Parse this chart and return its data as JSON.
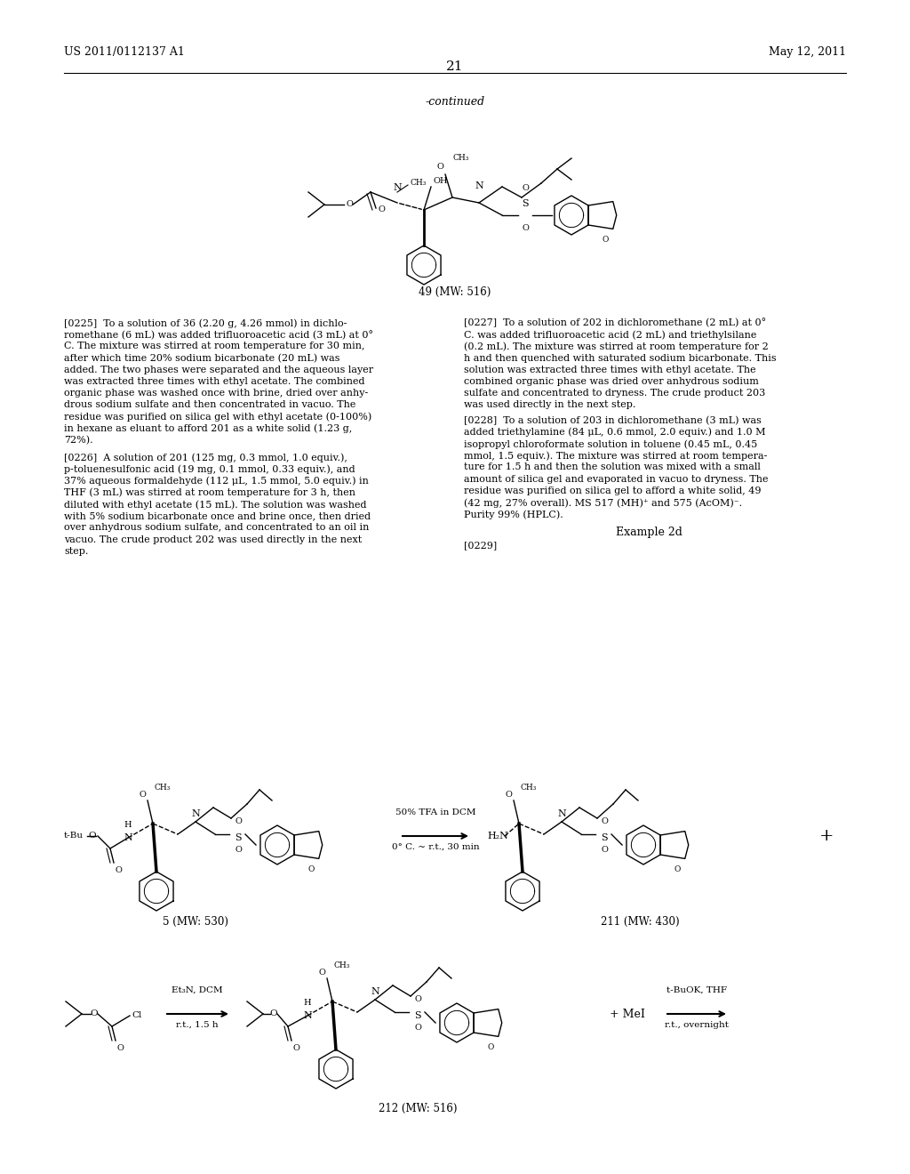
{
  "page_header_left": "US 2011/0112137 A1",
  "page_header_right": "May 12, 2011",
  "page_number": "21",
  "continued_label": "-continued",
  "compound_49_label": "49 (MW: 516)",
  "compound_5_label": "5 (MW: 530)",
  "compound_211_label": "211 (MW: 430)",
  "compound_212_label": "212 (MW: 516)",
  "reaction_arrow_1_top": "50% TFA in DCM",
  "reaction_arrow_1_bot": "0° C. ~ r.t., 30 min",
  "reaction_arrow_2_top": "Et₃N, DCM",
  "reaction_arrow_2_bot": "r.t., 1.5 h",
  "reaction_arrow_3_top": "t-BuOK, THF",
  "reaction_arrow_3_bot": "r.t., overnight",
  "plus1": "+",
  "plus2": "+ MeI",
  "example_2d": "Example 2d",
  "par_0229": "[0229]",
  "background": "#ffffff",
  "p225_lines": [
    "[0225]  To a solution of 36 (2.20 g, 4.26 mmol) in dichlo-",
    "romethane (6 mL) was added trifluoroacetic acid (3 mL) at 0°",
    "C. The mixture was stirred at room temperature for 30 min,",
    "after which time 20% sodium bicarbonate (20 mL) was",
    "added. The two phases were separated and the aqueous layer",
    "was extracted three times with ethyl acetate. The combined",
    "organic phase was washed once with brine, dried over anhy-",
    "drous sodium sulfate and then concentrated in vacuo. The",
    "residue was purified on silica gel with ethyl acetate (0-100%)",
    "in hexane as eluant to afford 201 as a white solid (1.23 g,",
    "72%)."
  ],
  "p226_lines": [
    "[0226]  A solution of 201 (125 mg, 0.3 mmol, 1.0 equiv.),",
    "p-toluenesulfonic acid (19 mg, 0.1 mmol, 0.33 equiv.), and",
    "37% aqueous formaldehyde (112 μL, 1.5 mmol, 5.0 equiv.) in",
    "THF (3 mL) was stirred at room temperature for 3 h, then",
    "diluted with ethyl acetate (15 mL). The solution was washed",
    "with 5% sodium bicarbonate once and brine once, then dried",
    "over anhydrous sodium sulfate, and concentrated to an oil in",
    "vacuo. The crude product 202 was used directly in the next",
    "step."
  ],
  "p227_lines": [
    "[0227]  To a solution of 202 in dichloromethane (2 mL) at 0°",
    "C. was added trifluoroacetic acid (2 mL) and triethylsilane",
    "(0.2 mL). The mixture was stirred at room temperature for 2",
    "h and then quenched with saturated sodium bicarbonate. This",
    "solution was extracted three times with ethyl acetate. The",
    "combined organic phase was dried over anhydrous sodium",
    "sulfate and concentrated to dryness. The crude product 203",
    "was used directly in the next step."
  ],
  "p228_lines": [
    "[0228]  To a solution of 203 in dichloromethane (3 mL) was",
    "added triethylamine (84 μL, 0.6 mmol, 2.0 equiv.) and 1.0 M",
    "isopropyl chloroformate solution in toluene (0.45 mL, 0.45",
    "mmol, 1.5 equiv.). The mixture was stirred at room tempera-",
    "ture for 1.5 h and then the solution was mixed with a small",
    "amount of silica gel and evaporated in vacuo to dryness. The",
    "residue was purified on silica gel to afford a white solid, 49",
    "(42 mg, 27% overall). MS 517 (MH)⁺ and 575 (AcOM)⁻.",
    "Purity 99% (HPLC)."
  ]
}
